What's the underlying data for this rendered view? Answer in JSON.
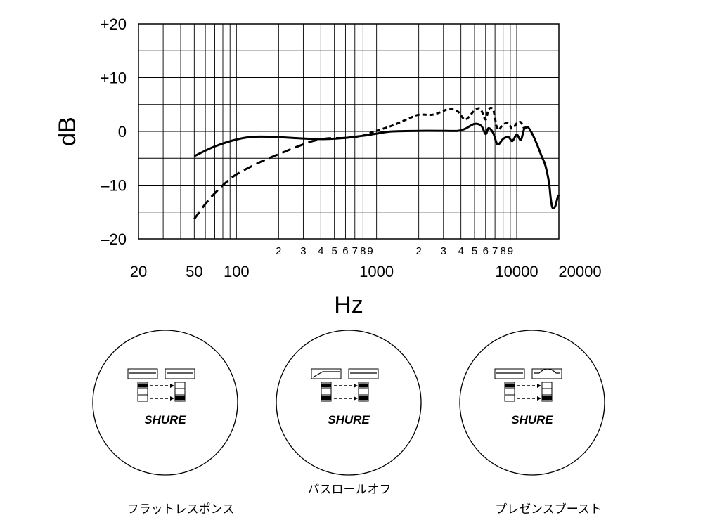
{
  "chart_data": {
    "type": "line",
    "xscale": "log",
    "xlim": [
      20,
      20000
    ],
    "ylim": [
      -20,
      20
    ],
    "ylabel": "dB",
    "xlabel": "Hz",
    "grid": true,
    "legend": "none",
    "y_ticks": [
      {
        "value": 20,
        "label": "+20"
      },
      {
        "value": 10,
        "label": "+10"
      },
      {
        "value": 0,
        "label": "0"
      },
      {
        "value": -10,
        "label": "–10"
      },
      {
        "value": -20,
        "label": "–20"
      }
    ],
    "x_major_ticks": [
      {
        "value": 20,
        "label": "20"
      },
      {
        "value": 50,
        "label": "50"
      },
      {
        "value": 100,
        "label": "100"
      },
      {
        "value": 1000,
        "label": "1000"
      },
      {
        "value": 10000,
        "label": "10000"
      },
      {
        "value": 20000,
        "label": "20000"
      }
    ],
    "x_minor_ticks": [
      {
        "value": 200,
        "label": "2"
      },
      {
        "value": 300,
        "label": "3"
      },
      {
        "value": 400,
        "label": "4"
      },
      {
        "value": 500,
        "label": "5"
      },
      {
        "value": 600,
        "label": "6"
      },
      {
        "value": 700,
        "label": "7"
      },
      {
        "value": 800,
        "label": "8"
      },
      {
        "value": 900,
        "label": "9"
      },
      {
        "value": 2000,
        "label": "2"
      },
      {
        "value": 3000,
        "label": "3"
      },
      {
        "value": 4000,
        "label": "4"
      },
      {
        "value": 5000,
        "label": "5"
      },
      {
        "value": 6000,
        "label": "6"
      },
      {
        "value": 7000,
        "label": "7"
      },
      {
        "value": 8000,
        "label": "8"
      },
      {
        "value": 9000,
        "label": "9"
      }
    ],
    "series": [
      {
        "style": "solid",
        "points": [
          [
            50,
            -4.6
          ],
          [
            70,
            -2.8
          ],
          [
            100,
            -1.5
          ],
          [
            130,
            -1.0
          ],
          [
            180,
            -1.0
          ],
          [
            250,
            -1.2
          ],
          [
            350,
            -1.4
          ],
          [
            450,
            -1.4
          ],
          [
            600,
            -1.2
          ],
          [
            800,
            -0.8
          ],
          [
            1000,
            -0.4
          ],
          [
            1300,
            0.0
          ],
          [
            2000,
            0.1
          ],
          [
            3000,
            0.1
          ],
          [
            3800,
            0.1
          ],
          [
            4300,
            0.5
          ],
          [
            5000,
            1.4
          ],
          [
            5600,
            1.0
          ],
          [
            6000,
            -0.5
          ],
          [
            6300,
            0.6
          ],
          [
            6800,
            -0.3
          ],
          [
            7300,
            -2.4
          ],
          [
            8000,
            -1.4
          ],
          [
            8700,
            -1.0
          ],
          [
            9300,
            -1.8
          ],
          [
            10000,
            -0.6
          ],
          [
            10700,
            -1.6
          ],
          [
            11300,
            0.4
          ],
          [
            12000,
            0.8
          ],
          [
            13000,
            -0.6
          ],
          [
            14000,
            -2.5
          ],
          [
            15000,
            -4.5
          ],
          [
            16000,
            -6.3
          ],
          [
            17000,
            -9.5
          ],
          [
            17500,
            -12.5
          ],
          [
            18000,
            -14.2
          ],
          [
            18800,
            -14.0
          ],
          [
            19500,
            -12.5
          ],
          [
            20000,
            -11.8
          ]
        ]
      },
      {
        "style": "long-dash",
        "points": [
          [
            50,
            -16.3
          ],
          [
            60,
            -13.5
          ],
          [
            70,
            -11.5
          ],
          [
            85,
            -9.4
          ],
          [
            100,
            -8.0
          ],
          [
            130,
            -6.4
          ],
          [
            170,
            -5.0
          ],
          [
            220,
            -3.8
          ],
          [
            280,
            -2.7
          ],
          [
            350,
            -1.8
          ],
          [
            450,
            -1.3
          ],
          [
            600,
            -1.2
          ],
          [
            800,
            -0.8
          ],
          [
            1000,
            -0.4
          ]
        ]
      },
      {
        "style": "short-dash",
        "points": [
          [
            800,
            -0.8
          ],
          [
            1000,
            0.1
          ],
          [
            1300,
            1.1
          ],
          [
            1700,
            2.4
          ],
          [
            2000,
            3.1
          ],
          [
            2500,
            3.1
          ],
          [
            3000,
            3.8
          ],
          [
            3300,
            4.2
          ],
          [
            3800,
            3.7
          ],
          [
            4300,
            2.2
          ],
          [
            5000,
            3.9
          ],
          [
            5500,
            4.2
          ],
          [
            6000,
            2.2
          ],
          [
            6300,
            4.1
          ],
          [
            6800,
            4.0
          ],
          [
            7300,
            0.4
          ],
          [
            8000,
            1.3
          ],
          [
            8700,
            1.5
          ],
          [
            9300,
            0.5
          ],
          [
            10000,
            1.5
          ],
          [
            10700,
            1.7
          ],
          [
            11300,
            0.6
          ],
          [
            12000,
            0.8
          ]
        ]
      }
    ]
  },
  "switch_panels": [
    {
      "brand": "SHURE",
      "caption": "フラットレスポンス",
      "mode": "flat"
    },
    {
      "brand": "SHURE",
      "caption": "バスロールオフ",
      "mode": "bass-rolloff"
    },
    {
      "brand": "SHURE",
      "caption": "プレゼンスブースト",
      "mode": "presence-boost"
    }
  ],
  "colors": {
    "ink": "#000000",
    "grid": "#000000",
    "background": "#ffffff"
  }
}
